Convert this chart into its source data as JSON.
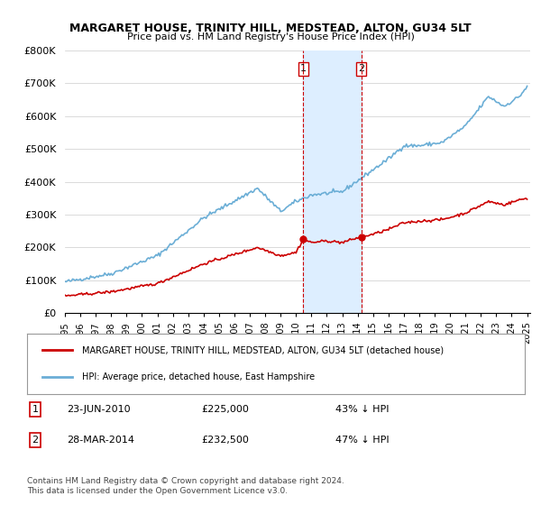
{
  "title": "MARGARET HOUSE, TRINITY HILL, MEDSTEAD, ALTON, GU34 5LT",
  "subtitle": "Price paid vs. HM Land Registry's House Price Index (HPI)",
  "ylabel": "",
  "ylim": [
    0,
    800000
  ],
  "yticks": [
    0,
    100000,
    200000,
    300000,
    400000,
    500000,
    600000,
    700000,
    800000
  ],
  "ytick_labels": [
    "£0",
    "£100K",
    "£200K",
    "£300K",
    "£400K",
    "£500K",
    "£600K",
    "£700K",
    "£800K"
  ],
  "x_start_year": 1995,
  "x_end_year": 2025,
  "hpi_color": "#6baed6",
  "price_color": "#cc0000",
  "sale1_year": 2010.47,
  "sale1_price": 225000,
  "sale2_year": 2014.23,
  "sale2_price": 232500,
  "vline_color": "#cc0000",
  "legend_label1": "MARGARET HOUSE, TRINITY HILL, MEDSTEAD, ALTON, GU34 5LT (detached house)",
  "legend_label2": "HPI: Average price, detached house, East Hampshire",
  "note1_num": "1",
  "note1_date": "23-JUN-2010",
  "note1_price": "£225,000",
  "note1_pct": "43% ↓ HPI",
  "note2_num": "2",
  "note2_date": "28-MAR-2014",
  "note2_price": "£232,500",
  "note2_pct": "47% ↓ HPI",
  "footer": "Contains HM Land Registry data © Crown copyright and database right 2024.\nThis data is licensed under the Open Government Licence v3.0.",
  "background_color": "#ffffff",
  "shaded_region_color": "#ddeeff"
}
